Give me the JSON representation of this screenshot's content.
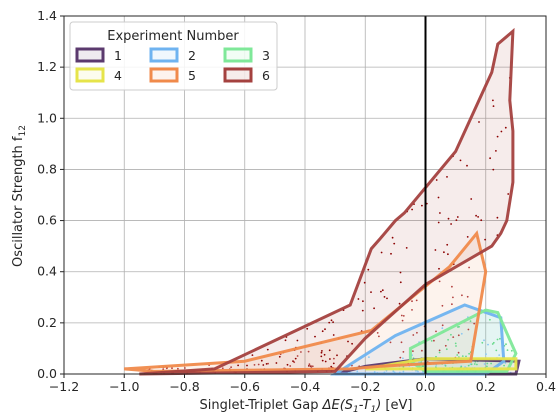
{
  "chart_data": {
    "type": "scatter",
    "xlabel": "Singlet-Triplet Gap",
    "xlabel_math": "ΔE(S",
    "xlabel_unit": "[eV]",
    "ylabel": "Oscillator Strength f",
    "ylabel_sub": "12",
    "xlim": [
      -1.2,
      0.4
    ],
    "ylim": [
      0.0,
      1.4
    ],
    "xticks": [
      "−1.2",
      "−1.0",
      "−0.8",
      "−0.6",
      "−0.4",
      "−0.2",
      "0.0",
      "0.2",
      "0.4"
    ],
    "yticks": [
      "0.0",
      "0.2",
      "0.4",
      "0.6",
      "0.8",
      "1.0",
      "1.2",
      "1.4"
    ],
    "grid": true,
    "vline_x": 0.0,
    "legend": {
      "title": "Experiment Number",
      "placement": "top-left",
      "ncol": 3
    },
    "series": [
      {
        "name": "1",
        "color": "#5b3a6e",
        "hull": [
          [
            -0.3,
            0.0
          ],
          [
            0.3,
            0.0
          ],
          [
            0.31,
            0.05
          ],
          [
            0.0,
            0.06
          ],
          [
            -0.2,
            0.03
          ],
          [
            -0.3,
            0.0
          ]
        ]
      },
      {
        "name": "2",
        "color": "#6fb3f0",
        "hull": [
          [
            -0.3,
            0.0
          ],
          [
            0.2,
            0.0
          ],
          [
            0.26,
            0.05
          ],
          [
            0.25,
            0.22
          ],
          [
            0.13,
            0.27
          ],
          [
            -0.1,
            0.15
          ],
          [
            -0.3,
            0.0
          ]
        ]
      },
      {
        "name": "3",
        "color": "#7fe899",
        "hull": [
          [
            -0.05,
            0.05
          ],
          [
            0.0,
            0.01
          ],
          [
            0.27,
            0.01
          ],
          [
            0.3,
            0.08
          ],
          [
            0.24,
            0.24
          ],
          [
            0.2,
            0.25
          ],
          [
            -0.05,
            0.1
          ],
          [
            -0.05,
            0.05
          ]
        ]
      },
      {
        "name": "4",
        "color": "#e6e44a",
        "hull": [
          [
            -0.2,
            0.02
          ],
          [
            0.3,
            0.02
          ],
          [
            0.3,
            0.06
          ],
          [
            0.0,
            0.06
          ],
          [
            -0.2,
            0.02
          ]
        ]
      },
      {
        "name": "5",
        "color": "#f08a4b",
        "hull": [
          [
            -1.0,
            0.02
          ],
          [
            -0.9,
            0.01
          ],
          [
            -0.25,
            0.02
          ],
          [
            -0.15,
            0.03
          ],
          [
            0.15,
            0.05
          ],
          [
            0.2,
            0.4
          ],
          [
            0.17,
            0.55
          ],
          [
            0.08,
            0.42
          ],
          [
            -0.18,
            0.17
          ],
          [
            -0.6,
            0.05
          ],
          [
            -1.0,
            0.02
          ]
        ]
      },
      {
        "name": "6",
        "color": "#a4413f",
        "hull": [
          [
            -0.95,
            0.0
          ],
          [
            -0.7,
            0.02
          ],
          [
            -0.25,
            0.27
          ],
          [
            -0.18,
            0.49
          ],
          [
            -0.15,
            0.53
          ],
          [
            -0.1,
            0.6
          ],
          [
            -0.07,
            0.63
          ],
          [
            0.1,
            0.87
          ],
          [
            0.22,
            1.18
          ],
          [
            0.24,
            1.29
          ],
          [
            0.29,
            1.34
          ],
          [
            0.28,
            1.07
          ],
          [
            0.29,
            0.95
          ],
          [
            0.29,
            0.75
          ],
          [
            0.27,
            0.6
          ],
          [
            0.25,
            0.55
          ],
          [
            0.22,
            0.5
          ],
          [
            0.0,
            0.35
          ],
          [
            -0.2,
            0.14
          ],
          [
            -0.3,
            0.01
          ],
          [
            -0.95,
            0.0
          ]
        ]
      }
    ],
    "vline_color": "#000000",
    "grid_color": "#b0b0b0",
    "scatter_colors": [
      "#8b0000",
      "#b3413f",
      "#66d98a",
      "#8ac7f2"
    ]
  }
}
